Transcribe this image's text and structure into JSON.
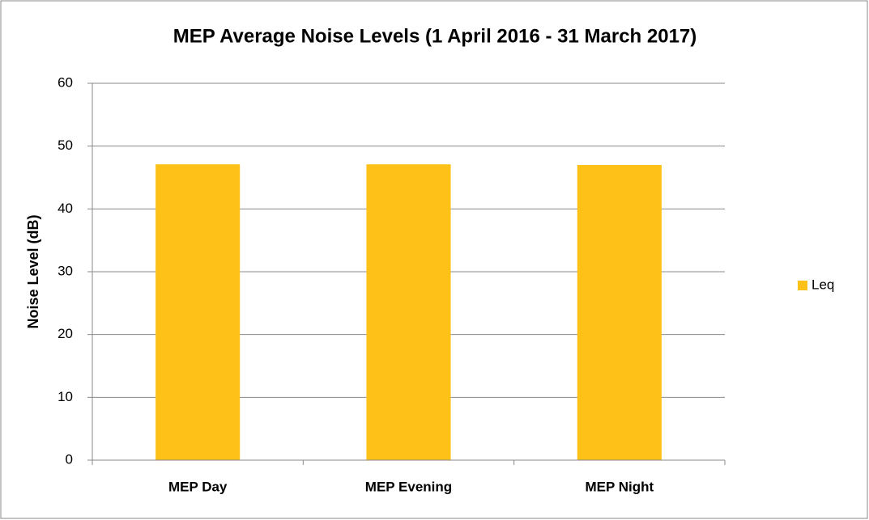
{
  "chart_data": {
    "type": "bar",
    "title": "MEP Average Noise Levels (1 April 2016 - 31 March 2017)",
    "y_label": "Noise Level  (dB)",
    "categories": [
      "MEP Day",
      "MEP Evening",
      "MEP Night"
    ],
    "series": [
      {
        "name": "Leq",
        "color": "#fdc118",
        "values": [
          47.1,
          47.1,
          47.0
        ]
      }
    ],
    "ylim": [
      0,
      60
    ],
    "yticks": [
      0,
      10,
      20,
      30,
      40,
      50,
      60
    ],
    "grid": true,
    "legend": "right"
  }
}
